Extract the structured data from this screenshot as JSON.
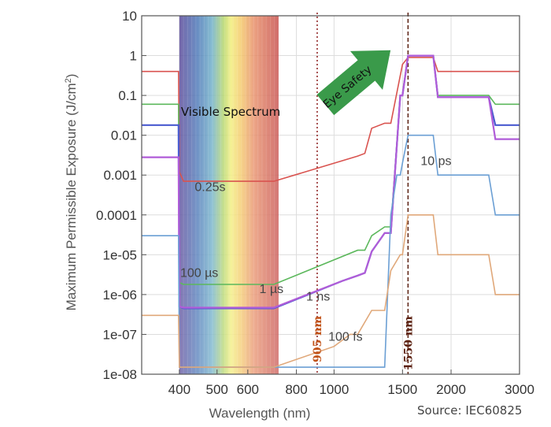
{
  "chart_data": {
    "type": "line",
    "ylabel_main": "Maximum Permissible Exposure (J/cm",
    "ylabel_sup": "2",
    "ylabel_close": ")",
    "xlabel": "Wavelength (nm)",
    "xscale": "log",
    "yscale": "log",
    "xlim": [
      320,
      3000
    ],
    "ylim": [
      1e-08,
      10
    ],
    "xticks": [
      {
        "value": 400,
        "label": "400"
      },
      {
        "value": 500,
        "label": "500"
      },
      {
        "value": 600,
        "label": "600"
      },
      {
        "value": 800,
        "label": "800"
      },
      {
        "value": 1000,
        "label": "1000"
      },
      {
        "value": 1500,
        "label": "1500"
      },
      {
        "value": 2000,
        "label": "2000"
      },
      {
        "value": 3000,
        "label": "3000"
      }
    ],
    "yticks": [
      {
        "value": 10,
        "label": "10"
      },
      {
        "value": 1,
        "label": "1"
      },
      {
        "value": 0.1,
        "label": "0.1"
      },
      {
        "value": 0.01,
        "label": "0.01"
      },
      {
        "value": 0.001,
        "label": "0.001"
      },
      {
        "value": 0.0001,
        "label": "0.0001"
      },
      {
        "value": 1e-05,
        "label": "1e-05"
      },
      {
        "value": 1e-06,
        "label": "1e-06"
      },
      {
        "value": 1e-07,
        "label": "1e-07"
      },
      {
        "value": 1e-08,
        "label": "1e-08"
      }
    ],
    "grid": true,
    "visible_band": {
      "x": [
        400,
        720
      ],
      "label": "Visible Spectrum"
    },
    "markers": [
      {
        "x": 905,
        "label": "905 nm",
        "color": "#8b1a1a"
      },
      {
        "x": 1550,
        "label": "1550 nm",
        "color": "#5a1f0f"
      }
    ],
    "arrow_label": "Eye Safety",
    "arrow_color": "#3a9a4a",
    "series": [
      {
        "name": "0.25s",
        "color": "#d9534f",
        "x": [
          320,
          398,
          400,
          410,
          700,
          1150,
          1200,
          1250,
          1350,
          1400,
          1500,
          1550,
          1800,
          1850,
          3000
        ],
        "y": [
          0.4,
          0.4,
          0.0012,
          0.0007,
          0.0007,
          0.003,
          0.0035,
          0.015,
          0.02,
          0.02,
          0.6,
          0.9,
          0.9,
          0.4,
          0.4
        ]
      },
      {
        "name": "100 µs",
        "color": "#5cb85c",
        "x": [
          320,
          398,
          400,
          410,
          700,
          1150,
          1200,
          1250,
          1350,
          1400,
          1480,
          1500,
          1550,
          1800,
          1850,
          2500,
          2600,
          3000
        ],
        "y": [
          0.06,
          0.06,
          2e-06,
          1.8e-06,
          1.8e-06,
          1.3e-05,
          1.3e-05,
          3e-05,
          5e-05,
          5e-05,
          0.1,
          0.1,
          1,
          1,
          0.1,
          0.1,
          0.06,
          0.06
        ]
      },
      {
        "name": "1 µs",
        "color": "#4a5bd0",
        "x": [
          320,
          398,
          400,
          410,
          700,
          1050,
          1150,
          1200,
          1250,
          1350,
          1400,
          1480,
          1500,
          1550,
          1800,
          1850,
          2500,
          2600,
          3000
        ],
        "y": [
          0.018,
          0.018,
          5e-07,
          4.5e-07,
          4.5e-07,
          2.2e-06,
          3e-06,
          3.5e-06,
          1.2e-05,
          3.5e-05,
          3.5e-05,
          0.1,
          0.1,
          1,
          1,
          0.09,
          0.09,
          0.018,
          0.018
        ]
      },
      {
        "name": "1 ns",
        "color": "#b05cd8",
        "x": [
          320,
          398,
          400,
          410,
          700,
          1050,
          1150,
          1200,
          1250,
          1350,
          1400,
          1480,
          1500,
          1550,
          1800,
          1850,
          2500,
          2600,
          3000
        ],
        "y": [
          0.0028,
          0.0028,
          5e-07,
          4.7e-07,
          4.7e-07,
          2.2e-06,
          3e-06,
          3.5e-06,
          1.2e-05,
          3.5e-05,
          3.5e-05,
          0.1,
          0.1,
          1,
          1,
          0.09,
          0.09,
          0.008,
          0.008
        ]
      },
      {
        "name": "10 ps",
        "color": "#6b9fd4",
        "x": [
          320,
          398,
          400,
          410,
          700,
          1350,
          1400,
          1450,
          1480,
          1500,
          1550,
          1800,
          1850,
          2500,
          2600,
          3000
        ],
        "y": [
          3e-05,
          3e-05,
          1.5e-08,
          1.5e-08,
          1.5e-08,
          1.5e-08,
          0.0001,
          0.001,
          0.001,
          0.002,
          0.01,
          0.01,
          0.001,
          0.001,
          0.0001,
          0.0001
        ]
      },
      {
        "name": "100 fs",
        "color": "#e0a87a",
        "x": [
          320,
          398,
          400,
          410,
          700,
          1000,
          1100,
          1150,
          1250,
          1350,
          1400,
          1480,
          1500,
          1550,
          1800,
          1850,
          2500,
          2600,
          3000
        ],
        "y": [
          3e-07,
          3e-07,
          1.5e-08,
          1.5e-08,
          1.5e-08,
          5e-08,
          1e-07,
          1e-07,
          4e-07,
          4e-07,
          4e-06,
          1e-05,
          1e-05,
          0.0001,
          0.0001,
          1e-05,
          1e-05,
          1e-06,
          1e-06
        ]
      }
    ],
    "series_labels": [
      {
        "text": "0.25s",
        "x": 480,
        "y": 0.0004
      },
      {
        "text": "100 µs",
        "x": 450,
        "y": 2.8e-06
      },
      {
        "text": "1 µs",
        "x": 690,
        "y": 1.1e-06
      },
      {
        "text": "1 ns",
        "x": 910,
        "y": 7e-07
      },
      {
        "text": "10 ps",
        "x": 1830,
        "y": 0.0018
      },
      {
        "text": "100 fs",
        "x": 1070,
        "y": 7e-08
      }
    ]
  },
  "source": "Source: IEC60825"
}
